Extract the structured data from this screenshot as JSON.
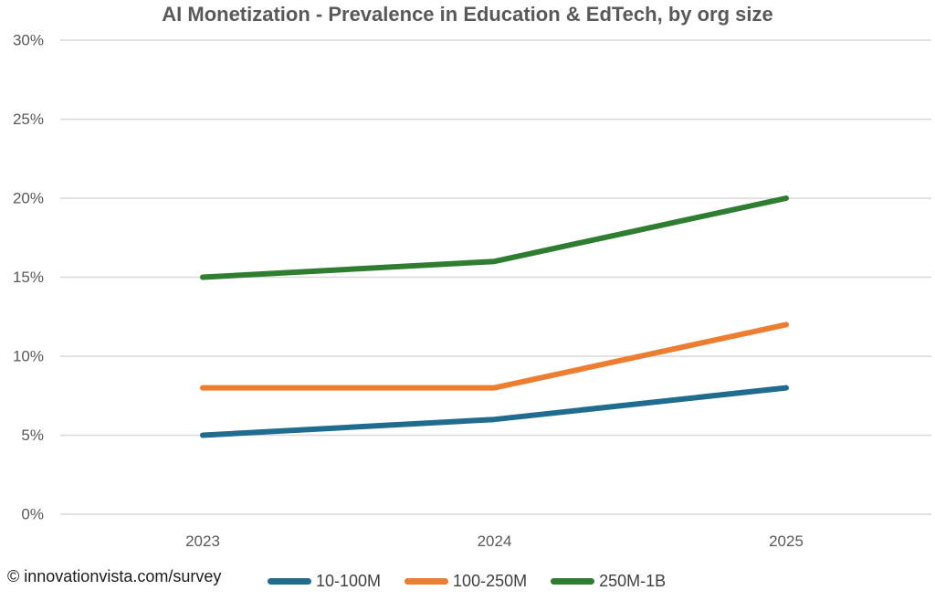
{
  "meta": {
    "title": "AI Monetization - Prevalence in Education & EdTech, by org size",
    "watermark": "© innovationvista.com/survey"
  },
  "colors": {
    "grid": "#d9d9d9",
    "axis_text": "#595959",
    "title_text": "#595959",
    "legend_text": "#404040",
    "watermark_text": "#1c1c1c",
    "series_blue": "#1f6c8f",
    "series_orange": "#ed7d31",
    "series_green": "#2f7d30"
  },
  "chart_data": {
    "type": "line",
    "title": "AI Monetization - Prevalence in Education & EdTech, by org size",
    "categories": [
      "2023",
      "2024",
      "2025"
    ],
    "series": [
      {
        "name": "10-100M",
        "values": [
          5,
          6,
          8
        ],
        "color": "#1f6c8f"
      },
      {
        "name": "100-250M",
        "values": [
          8,
          8,
          12
        ],
        "color": "#ed7d31"
      },
      {
        "name": "250M-1B",
        "values": [
          15,
          16,
          20
        ],
        "color": "#2f7d30"
      }
    ],
    "xlabel": "",
    "ylabel": "",
    "ylim": [
      0,
      30
    ],
    "ytick_step": 5,
    "ytick_labels": [
      "0%",
      "5%",
      "10%",
      "15%",
      "20%",
      "25%",
      "30%"
    ],
    "grid": true,
    "legend_position": "bottom"
  }
}
